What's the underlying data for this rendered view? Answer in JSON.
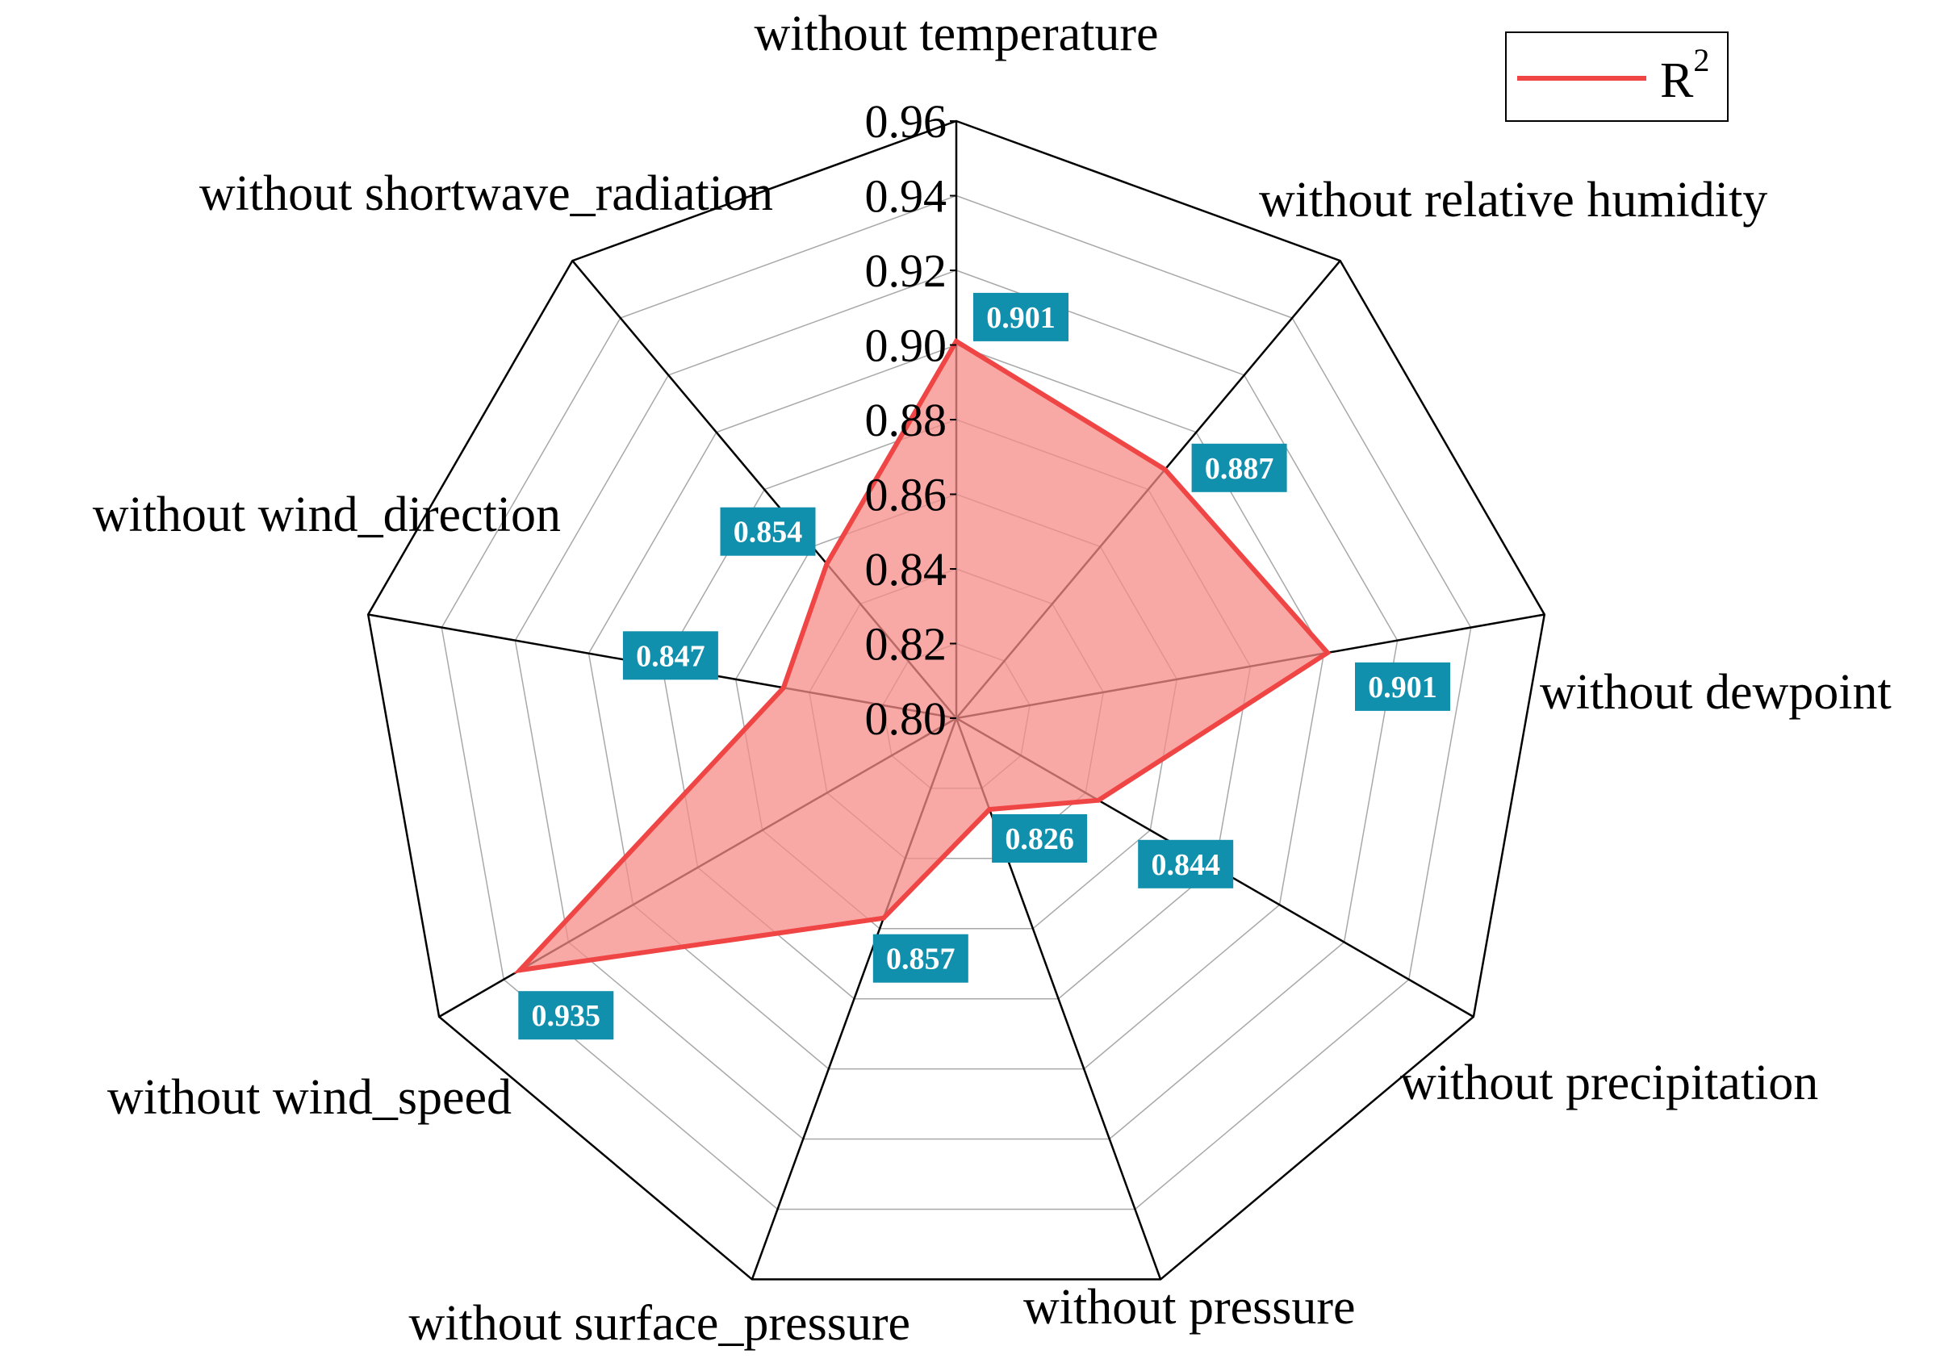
{
  "chart_data": {
    "type": "radar",
    "categories": [
      "without temperature",
      "without relative humidity",
      "without dewpoint",
      "without precipitation",
      "without pressure",
      "without surface_pressure",
      "without wind_speed",
      "without wind_direction",
      "without shortwave_radiation"
    ],
    "series": [
      {
        "name": "R",
        "values": [
          0.901,
          0.887,
          0.901,
          0.844,
          0.826,
          0.857,
          0.935,
          0.847,
          0.854
        ]
      }
    ],
    "value_labels": [
      "0.901",
      "0.887",
      "0.901",
      "0.844",
      "0.826",
      "0.857",
      "0.935",
      "0.847",
      "0.854"
    ],
    "rlim": [
      0.8,
      0.96
    ],
    "ticks": [
      "0.80",
      "0.82",
      "0.84",
      "0.86",
      "0.88",
      "0.90",
      "0.92",
      "0.94",
      "0.96"
    ],
    "grid": true,
    "legend_position": "top-right",
    "legend_superscript": "2",
    "colors": {
      "line": "#f04545",
      "fill": "#f58c87",
      "label_bg": "#1190ad",
      "grid": "#a8a8a8",
      "spoke": "#000000"
    }
  }
}
